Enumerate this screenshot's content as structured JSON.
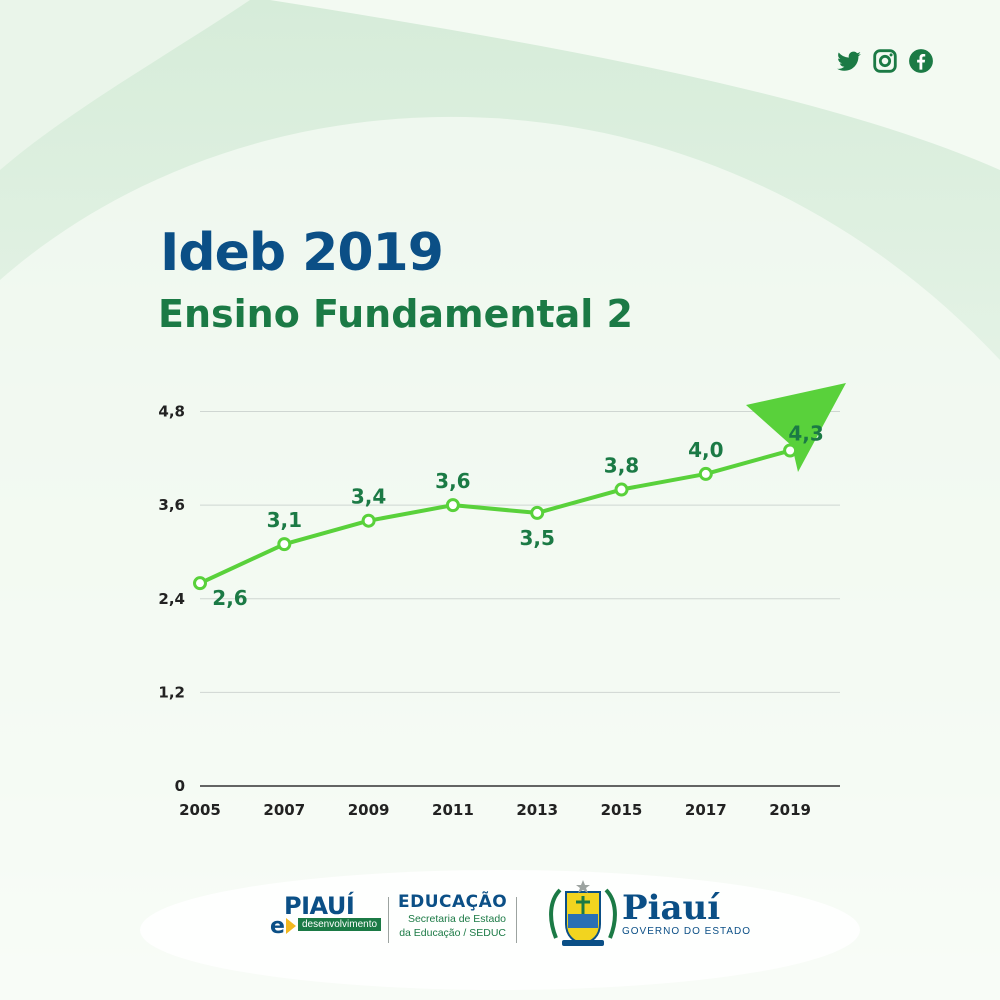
{
  "header": {
    "title": "Ideb 2019",
    "subtitle": "Ensino Fundamental 2",
    "social_icons": [
      "twitter-icon",
      "instagram-icon",
      "facebook-icon"
    ]
  },
  "colors": {
    "title": "#0b4f86",
    "subtitle": "#1b7a45",
    "line": "#59d13b",
    "label": "#1b7a45",
    "grid": "#cfd6d2"
  },
  "chart_data": {
    "type": "line",
    "title": "",
    "xlabel": "",
    "ylabel": "",
    "x": [
      "2005",
      "2007",
      "2009",
      "2011",
      "2013",
      "2015",
      "2017",
      "2019"
    ],
    "values": [
      2.6,
      3.1,
      3.4,
      3.6,
      3.5,
      3.8,
      4.0,
      4.3
    ],
    "data_labels": [
      "2,6",
      "3,1",
      "3,4",
      "3,6",
      "3,5",
      "3,8",
      "4,0",
      "4,3"
    ],
    "y_ticks": [
      0,
      1.2,
      2.4,
      3.6,
      4.8
    ],
    "y_tick_labels": [
      "0",
      "1,2",
      "2,4",
      "3,6",
      "4,8"
    ],
    "ylim": [
      0,
      4.8
    ],
    "grid": true,
    "legend": "none",
    "trend_arrow": true
  },
  "footer": {
    "logo_piaui": "PIAUÍ",
    "logo_e": "e",
    "logo_tag": "desenvolvimento",
    "edu_heading": "EDUCAÇÃO",
    "edu_line1": "Secretaria de Estado",
    "edu_line2": "da Educação / SEDUC",
    "gov_name": "Piauí",
    "gov_sub": "GOVERNO DO ESTADO"
  }
}
